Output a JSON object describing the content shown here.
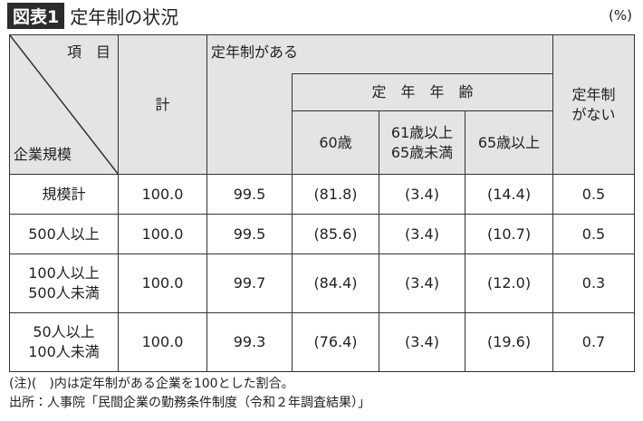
{
  "header": {
    "badge": "図表1",
    "title": "定年制の状況",
    "unit": "(%)"
  },
  "table": {
    "corner_top": "項　目",
    "corner_bottom": "企業規模",
    "col_total": "計",
    "col_has": "定年制がある",
    "col_age_group": "定　年　年　齢",
    "col_ages": [
      [
        "60歳"
      ],
      [
        "61歳以上",
        "65歳未満"
      ],
      [
        "65歳以上"
      ]
    ],
    "col_none": [
      "定年制",
      "がない"
    ],
    "rows": [
      {
        "label": [
          "規模計"
        ],
        "values": [
          "100.0",
          "99.5",
          "(81.8)",
          "(3.4)",
          "(14.4)",
          "0.5"
        ]
      },
      {
        "label": [
          "500人以上"
        ],
        "values": [
          "100.0",
          "99.5",
          "(85.6)",
          "(3.4)",
          "(10.7)",
          "0.5"
        ]
      },
      {
        "label": [
          "100人以上",
          "500人未満"
        ],
        "values": [
          "100.0",
          "99.7",
          "(84.4)",
          "(3.4)",
          "(12.0)",
          "0.3"
        ]
      },
      {
        "label": [
          "50人以上",
          "100人未満"
        ],
        "values": [
          "100.0",
          "99.3",
          "(76.4)",
          "(3.4)",
          "(19.6)",
          "0.7"
        ]
      }
    ]
  },
  "notes": [
    "(注)(　)内は定年制がある企業を100とした割合。",
    "出所：人事院「民間企業の勤務条件制度（令和２年調査結果）」"
  ]
}
